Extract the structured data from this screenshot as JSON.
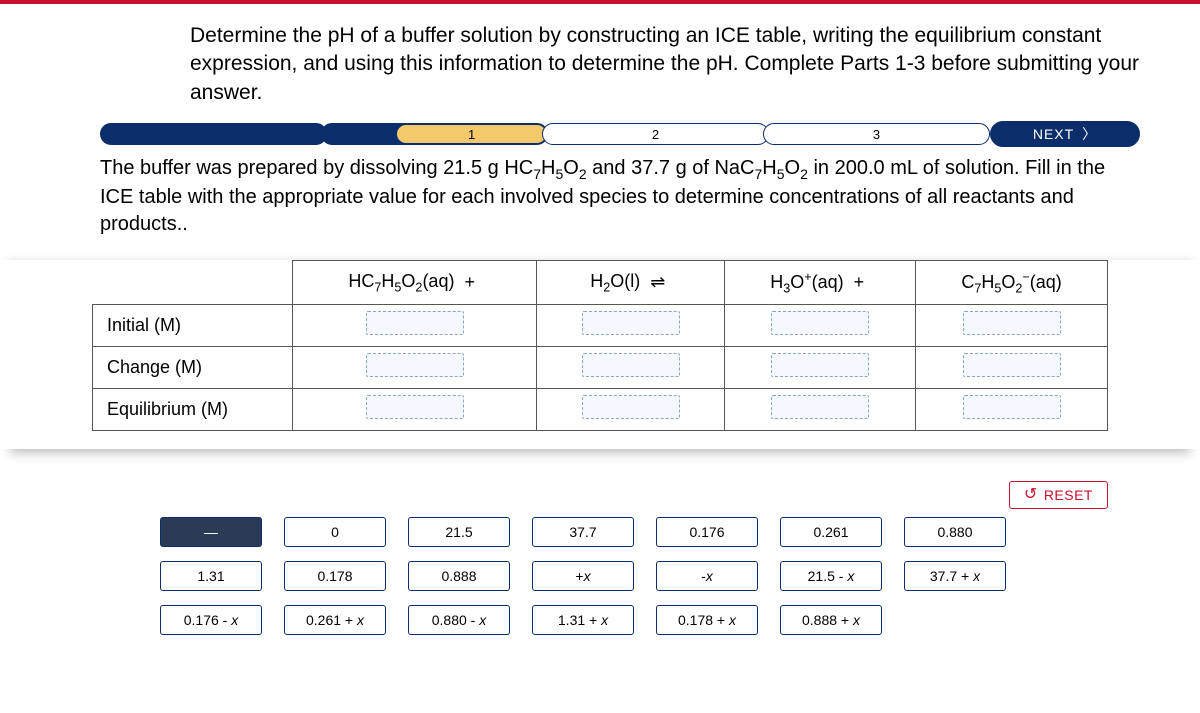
{
  "colors": {
    "brand_red": "#c8102e",
    "brand_navy": "#0b2e6b",
    "step_active": "#f3c96b",
    "slot_border": "#8da3c4",
    "slot_fill": "#f5f9ff"
  },
  "intro": "Determine the pH of a buffer solution by constructing an ICE table, writing the equilibrium constant expression, and using this information to determine the pH. Complete Parts 1-3 before submitting your answer.",
  "steps": {
    "s1": "1",
    "s2": "2",
    "s3": "3",
    "next": "NEXT"
  },
  "context_html": "The buffer was prepared by dissolving 21.5 g HC<sub>7</sub>H<sub>5</sub>O<sub>2</sub> and 37.7 g of NaC<sub>7</sub>H<sub>5</sub>O<sub>2</sub> in 200.0 mL of solution. Fill in the ICE table with the appropriate value for each involved species to determine concentrations of all reactants and products..",
  "ice": {
    "rows": {
      "initial": "Initial (M)",
      "change": "Change (M)",
      "equilibrium": "Equilibrium (M)"
    },
    "species": {
      "acid_html": "HC<sub>7</sub>H<sub>5</sub>O<sub>2</sub>(aq)",
      "water_html": "H<sub>2</sub>O(l)",
      "hydronium_html": "H<sub>3</sub>O<sup>+</sup>(aq)",
      "base_html": "C<sub>7</sub>H<sub>5</sub>O<sub>2</sub><sup>−</sup>(aq)"
    },
    "ops": {
      "plus1": "+",
      "eq": "⇌",
      "plus2": "+"
    }
  },
  "reset": "RESET",
  "tiles": {
    "t0": "—",
    "t1": "0",
    "t2": "21.5",
    "t3": "37.7",
    "t4": "0.176",
    "t5": "0.261",
    "t6": "0.880",
    "t7": "1.31",
    "t8": "0.178",
    "t9": "0.888",
    "t10": "+x",
    "t11": "-x",
    "t12": "21.5 - x",
    "t13": "37.7 + x",
    "t14": "0.176 - x",
    "t15": "0.261 + x",
    "t16": "0.880 - x",
    "t17": "1.31 + x",
    "t18": "0.178 + x",
    "t19": "0.888 + x"
  }
}
